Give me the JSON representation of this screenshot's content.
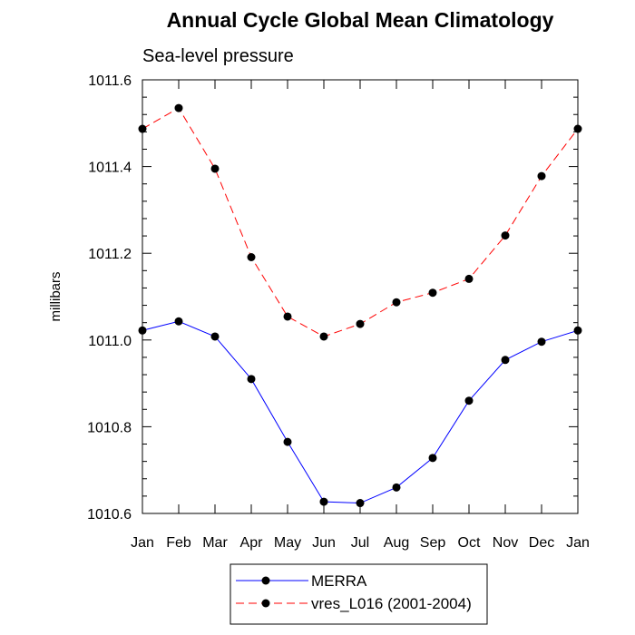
{
  "chart_data": {
    "type": "line",
    "title": "Annual Cycle Global Mean Climatology",
    "subtitle": "Sea-level pressure",
    "xlabel": "",
    "ylabel": "millibars",
    "categories": [
      "Jan",
      "Feb",
      "Mar",
      "Apr",
      "May",
      "Jun",
      "Jul",
      "Aug",
      "Sep",
      "Oct",
      "Nov",
      "Dec",
      "Jan"
    ],
    "ylim": [
      1010.6,
      1011.6
    ],
    "yticks": [
      1010.6,
      1010.8,
      1011.0,
      1011.2,
      1011.4,
      1011.6
    ],
    "ytick_labels": [
      "1010.6",
      "1010.8",
      "1011.0",
      "1011.2",
      "1011.4",
      "1011.6"
    ],
    "legend_position": "bottom-center",
    "series": [
      {
        "name": "MERRA",
        "color": "#0000ff",
        "dashed": false,
        "values": [
          1011.022,
          1011.043,
          1011.008,
          1010.91,
          1010.765,
          1010.627,
          1010.624,
          1010.66,
          1010.728,
          1010.86,
          1010.954,
          1010.996,
          1011.022
        ]
      },
      {
        "name": "vres_L016 (2001-2004)",
        "color": "#ff0000",
        "dashed": true,
        "values": [
          1011.487,
          1011.535,
          1011.395,
          1011.191,
          1011.054,
          1011.008,
          1011.037,
          1011.087,
          1011.109,
          1011.141,
          1011.241,
          1011.378,
          1011.487
        ]
      }
    ]
  }
}
